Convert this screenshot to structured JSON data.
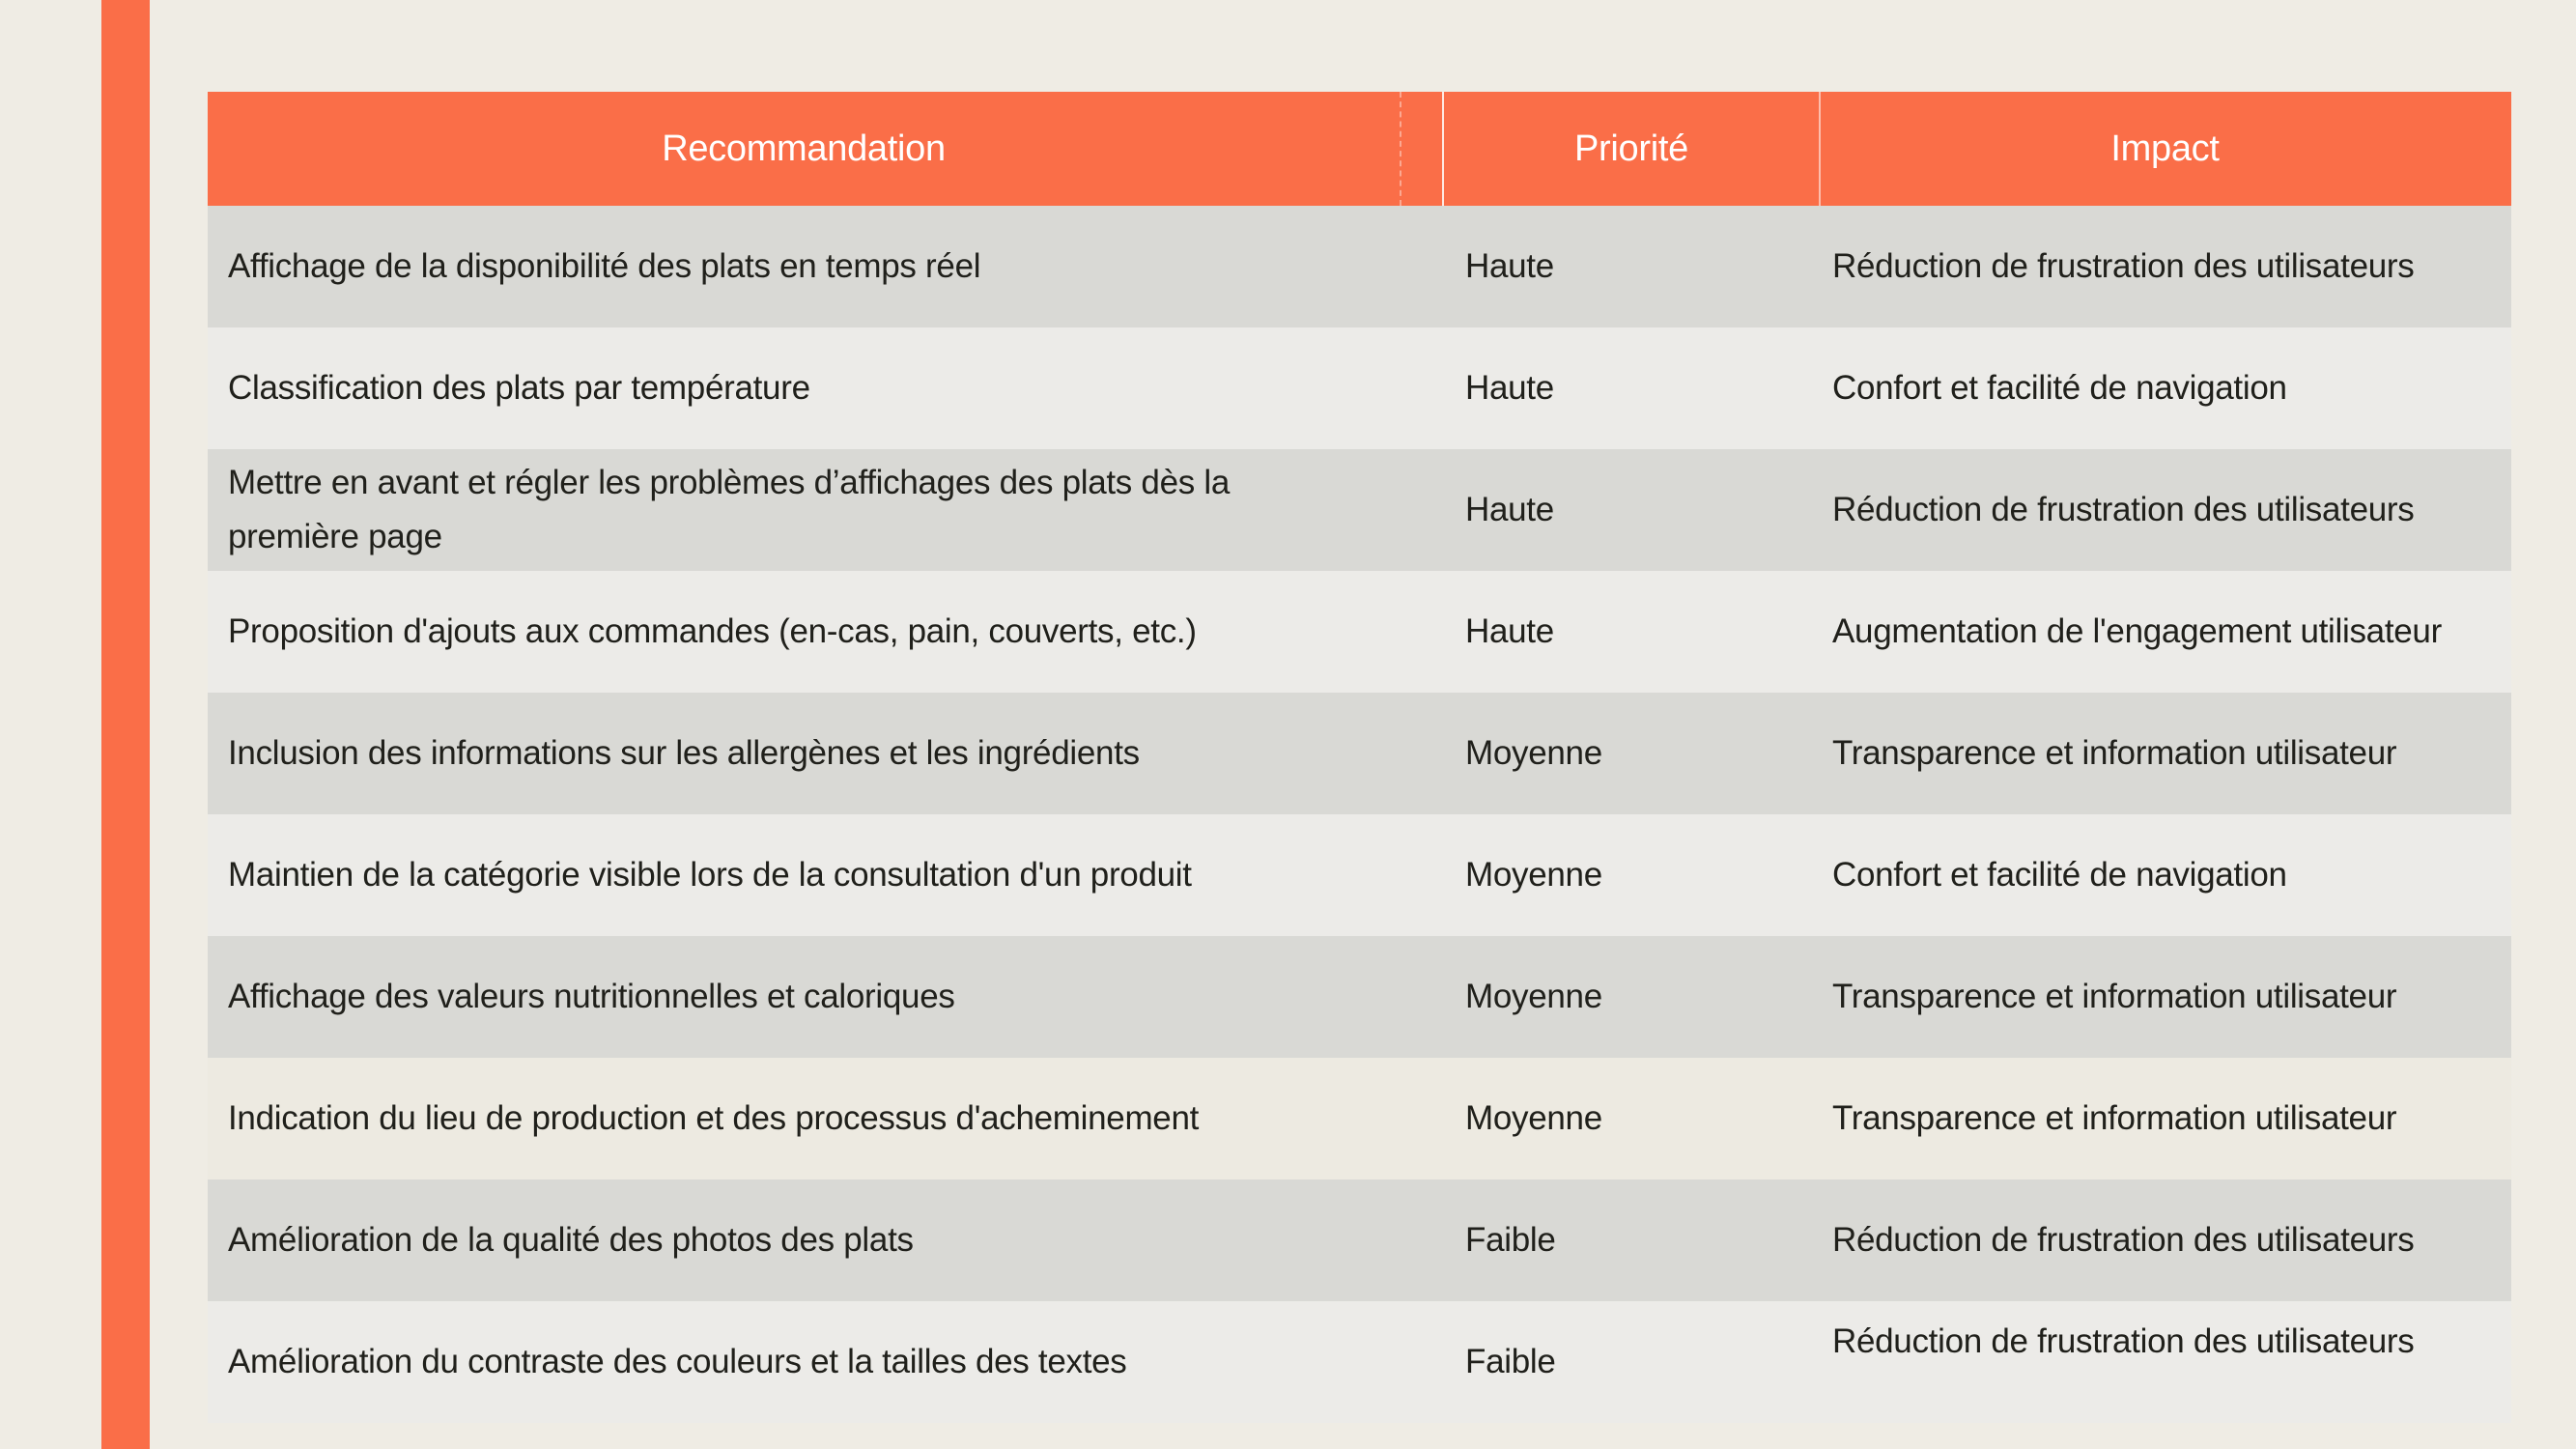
{
  "page": {
    "background_color": "#EFECE4",
    "accent_bar_color": "#FA6E48",
    "text_color": "#20201B"
  },
  "table": {
    "header": {
      "background_color": "#FA6E48",
      "text_color": "#FFFFFF",
      "columns": [
        {
          "label": "Recommandation"
        },
        {
          "label": "Priorité"
        },
        {
          "label": "Impact"
        }
      ]
    },
    "row_colors": {
      "odd": "#D9D9D5",
      "even": "#ECEBE8",
      "beige_variant": "#EDEAE1"
    },
    "rows": [
      {
        "recommendation": "Affichage de la disponibilité des plats en temps réel",
        "priority": "Haute",
        "impact": "Réduction de frustration des utilisateurs"
      },
      {
        "recommendation": "Classification des plats par température",
        "priority": "Haute",
        "impact": "Confort et facilité de navigation"
      },
      {
        "recommendation": "Mettre en avant et régler les problèmes d’affichages des plats dès la première page",
        "priority": "Haute",
        "impact": "Réduction de frustration des utilisateurs"
      },
      {
        "recommendation": "Proposition d'ajouts aux commandes (en-cas, pain, couverts, etc.)",
        "priority": "Haute",
        "impact": "Augmentation de l'engagement utilisateur"
      },
      {
        "recommendation": "Inclusion des informations sur les allergènes et les ingrédients",
        "priority": "Moyenne",
        "impact": "Transparence et information utilisateur"
      },
      {
        "recommendation": "Maintien de la catégorie visible lors de la consultation d'un produit",
        "priority": "Moyenne",
        "impact": "Confort et facilité de navigation"
      },
      {
        "recommendation": "Affichage des valeurs nutritionnelles et caloriques",
        "priority": "Moyenne",
        "impact": "Transparence et information utilisateur"
      },
      {
        "recommendation": "Indication du lieu de production et des processus d'acheminement",
        "priority": "Moyenne",
        "impact": "Transparence et information utilisateur"
      },
      {
        "recommendation": "Amélioration de la qualité des photos des plats",
        "priority": "Faible",
        "impact": "Réduction de frustration des utilisateurs"
      },
      {
        "recommendation": "Amélioration du contraste des couleurs  et la tailles des textes",
        "priority": "Faible",
        "impact": "Réduction de frustration des utilisateurs"
      }
    ]
  }
}
